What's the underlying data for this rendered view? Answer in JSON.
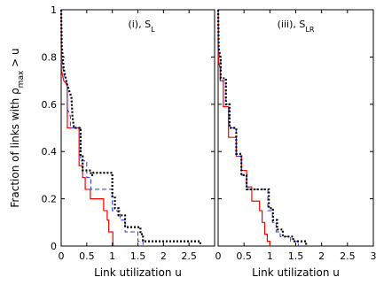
{
  "chart_data": {
    "type": "line",
    "ylabel": {
      "prefix": "Fraction of links with ρ",
      "subscript": "max",
      "suffix": " > u"
    },
    "yticks": [
      "0",
      "0.2",
      "0.4",
      "0.6",
      "0.8",
      "1"
    ],
    "ylim": [
      0,
      1
    ],
    "grid": false,
    "panels": [
      {
        "title": {
          "main": "(i), S",
          "sub": "L"
        },
        "xlabel": "Link utilization u",
        "xlim": [
          0,
          3
        ],
        "xticks": [
          "0",
          "0.5",
          "1",
          "1.5",
          "2",
          "2.5"
        ],
        "series": [
          {
            "style": "solid",
            "color": "#ff0000",
            "width": 1.2,
            "points": [
              [
                0,
                1
              ],
              [
                0.01,
                0.74
              ],
              [
                0.05,
                0.7
              ],
              [
                0.12,
                0.68
              ],
              [
                0.12,
                0.5
              ],
              [
                0.35,
                0.5
              ],
              [
                0.35,
                0.34
              ],
              [
                0.42,
                0.34
              ],
              [
                0.42,
                0.29
              ],
              [
                0.47,
                0.29
              ],
              [
                0.47,
                0.24
              ],
              [
                0.57,
                0.24
              ],
              [
                0.57,
                0.2
              ],
              [
                0.83,
                0.2
              ],
              [
                0.83,
                0.15
              ],
              [
                0.9,
                0.15
              ],
              [
                0.9,
                0.11
              ],
              [
                0.93,
                0.11
              ],
              [
                0.93,
                0.06
              ],
              [
                1.01,
                0.06
              ],
              [
                1.01,
                0.02
              ],
              [
                1.02,
                0
              ]
            ]
          },
          {
            "style": "dashed",
            "color": "#1f33ff",
            "width": 1.0,
            "points": [
              [
                0,
                1
              ],
              [
                0.01,
                0.8
              ],
              [
                0.05,
                0.73
              ],
              [
                0.12,
                0.68
              ],
              [
                0.12,
                0.58
              ],
              [
                0.18,
                0.55
              ],
              [
                0.18,
                0.5
              ],
              [
                0.38,
                0.5
              ],
              [
                0.38,
                0.36
              ],
              [
                0.5,
                0.36
              ],
              [
                0.5,
                0.29
              ],
              [
                0.58,
                0.29
              ],
              [
                0.58,
                0.24
              ],
              [
                1.0,
                0.24
              ],
              [
                1.0,
                0.15
              ],
              [
                1.15,
                0.15
              ],
              [
                1.15,
                0.11
              ],
              [
                1.25,
                0.11
              ],
              [
                1.25,
                0.06
              ],
              [
                1.5,
                0.06
              ],
              [
                1.5,
                0.02
              ],
              [
                1.6,
                0.02
              ],
              [
                1.6,
                0
              ]
            ]
          },
          {
            "style": "dotted",
            "color": "#000000",
            "width": 2.2,
            "points": [
              [
                0,
                1
              ],
              [
                0.01,
                0.85
              ],
              [
                0.05,
                0.75
              ],
              [
                0.12,
                0.68
              ],
              [
                0.2,
                0.63
              ],
              [
                0.22,
                0.55
              ],
              [
                0.25,
                0.5
              ],
              [
                0.38,
                0.5
              ],
              [
                0.38,
                0.38
              ],
              [
                0.42,
                0.38
              ],
              [
                0.42,
                0.32
              ],
              [
                0.58,
                0.32
              ],
              [
                0.58,
                0.3
              ],
              [
                0.63,
                0.3
              ],
              [
                0.63,
                0.31
              ],
              [
                1.0,
                0.31
              ],
              [
                1.0,
                0.21
              ],
              [
                1.05,
                0.21
              ],
              [
                1.05,
                0.16
              ],
              [
                1.12,
                0.16
              ],
              [
                1.12,
                0.13
              ],
              [
                1.25,
                0.13
              ],
              [
                1.25,
                0.08
              ],
              [
                1.55,
                0.08
              ],
              [
                1.55,
                0.05
              ],
              [
                1.6,
                0.05
              ],
              [
                1.6,
                0.02
              ],
              [
                2.72,
                0.02
              ],
              [
                2.72,
                0
              ]
            ]
          }
        ]
      },
      {
        "title": {
          "main": "(iii), S",
          "sub": "LR"
        },
        "xlabel": "Link utilization u",
        "xlim": [
          0,
          3
        ],
        "xticks": [
          "0",
          "0.5",
          "1",
          "1.5",
          "2",
          "2.5",
          "3"
        ],
        "series": [
          {
            "style": "solid",
            "color": "#ff0000",
            "width": 1.2,
            "points": [
              [
                0,
                1
              ],
              [
                0.01,
                0.78
              ],
              [
                0.04,
                0.75
              ],
              [
                0.04,
                0.7
              ],
              [
                0.1,
                0.7
              ],
              [
                0.1,
                0.59
              ],
              [
                0.2,
                0.59
              ],
              [
                0.2,
                0.46
              ],
              [
                0.35,
                0.46
              ],
              [
                0.35,
                0.38
              ],
              [
                0.45,
                0.38
              ],
              [
                0.45,
                0.32
              ],
              [
                0.55,
                0.32
              ],
              [
                0.55,
                0.25
              ],
              [
                0.65,
                0.25
              ],
              [
                0.65,
                0.19
              ],
              [
                0.8,
                0.19
              ],
              [
                0.8,
                0.15
              ],
              [
                0.85,
                0.15
              ],
              [
                0.85,
                0.1
              ],
              [
                0.9,
                0.1
              ],
              [
                0.9,
                0.05
              ],
              [
                0.95,
                0.05
              ],
              [
                0.95,
                0.02
              ],
              [
                1.0,
                0.02
              ],
              [
                1.0,
                0
              ]
            ]
          },
          {
            "style": "dashed",
            "color": "#1f33ff",
            "width": 1.0,
            "points": [
              [
                0,
                1
              ],
              [
                0.01,
                0.82
              ],
              [
                0.05,
                0.78
              ],
              [
                0.05,
                0.7
              ],
              [
                0.15,
                0.7
              ],
              [
                0.15,
                0.6
              ],
              [
                0.22,
                0.6
              ],
              [
                0.22,
                0.5
              ],
              [
                0.35,
                0.5
              ],
              [
                0.35,
                0.38
              ],
              [
                0.45,
                0.38
              ],
              [
                0.45,
                0.3
              ],
              [
                0.55,
                0.3
              ],
              [
                0.55,
                0.24
              ],
              [
                0.96,
                0.24
              ],
              [
                0.96,
                0.15
              ],
              [
                1.05,
                0.15
              ],
              [
                1.05,
                0.1
              ],
              [
                1.12,
                0.1
              ],
              [
                1.12,
                0.06
              ],
              [
                1.2,
                0.06
              ],
              [
                1.2,
                0.04
              ],
              [
                1.4,
                0.04
              ],
              [
                1.4,
                0.02
              ],
              [
                1.55,
                0.02
              ],
              [
                1.55,
                0
              ]
            ]
          },
          {
            "style": "dotted",
            "color": "#000000",
            "width": 2.2,
            "points": [
              [
                0,
                1
              ],
              [
                0.01,
                0.84
              ],
              [
                0.05,
                0.79
              ],
              [
                0.05,
                0.71
              ],
              [
                0.15,
                0.71
              ],
              [
                0.15,
                0.6
              ],
              [
                0.22,
                0.6
              ],
              [
                0.22,
                0.5
              ],
              [
                0.35,
                0.5
              ],
              [
                0.35,
                0.39
              ],
              [
                0.45,
                0.39
              ],
              [
                0.45,
                0.3
              ],
              [
                0.55,
                0.3
              ],
              [
                0.55,
                0.24
              ],
              [
                0.98,
                0.24
              ],
              [
                0.98,
                0.16
              ],
              [
                1.06,
                0.16
              ],
              [
                1.06,
                0.11
              ],
              [
                1.14,
                0.11
              ],
              [
                1.14,
                0.07
              ],
              [
                1.25,
                0.07
              ],
              [
                1.25,
                0.04
              ],
              [
                1.45,
                0.04
              ],
              [
                1.45,
                0.02
              ],
              [
                1.7,
                0.02
              ],
              [
                1.7,
                0
              ]
            ]
          }
        ]
      }
    ]
  }
}
